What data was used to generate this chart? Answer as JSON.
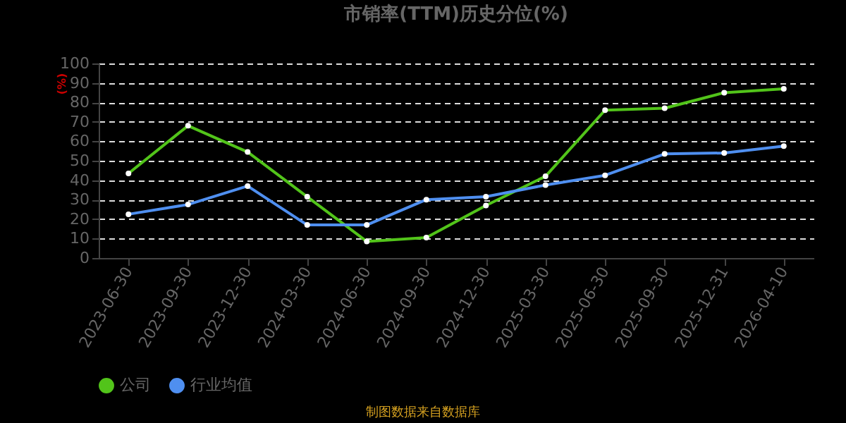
{
  "chart_data": {
    "type": "line",
    "title": "市销率(TTM)历史分位(%)",
    "ylabel": "(%)",
    "categories": [
      "2023-06-30",
      "2023-09-30",
      "2023-12-30",
      "2024-03-30",
      "2024-06-30",
      "2024-09-30",
      "2024-12-30",
      "2025-03-30",
      "2025-06-30",
      "2025-09-30",
      "2025-12-31",
      "2026-04-10"
    ],
    "series": [
      {
        "name": "公司",
        "color": "#52c41a",
        "values": [
          43.5,
          68,
          54.5,
          31.5,
          8.5,
          10.5,
          27,
          42,
          76,
          77,
          85,
          87
        ]
      },
      {
        "name": "行业均值",
        "color": "#4f8ff0",
        "values": [
          22.5,
          27.5,
          37,
          17,
          17,
          30,
          31.5,
          37.5,
          42.5,
          53.5,
          54,
          57.5
        ]
      }
    ],
    "ylim": [
      0,
      100
    ],
    "yticks": [
      0,
      10,
      20,
      30,
      40,
      50,
      60,
      70,
      80,
      90,
      100
    ],
    "grid": "y",
    "legend": "bottom",
    "marker": "circle",
    "line_style": "solid",
    "annotations": [
      "制图数据来自数据库"
    ]
  }
}
